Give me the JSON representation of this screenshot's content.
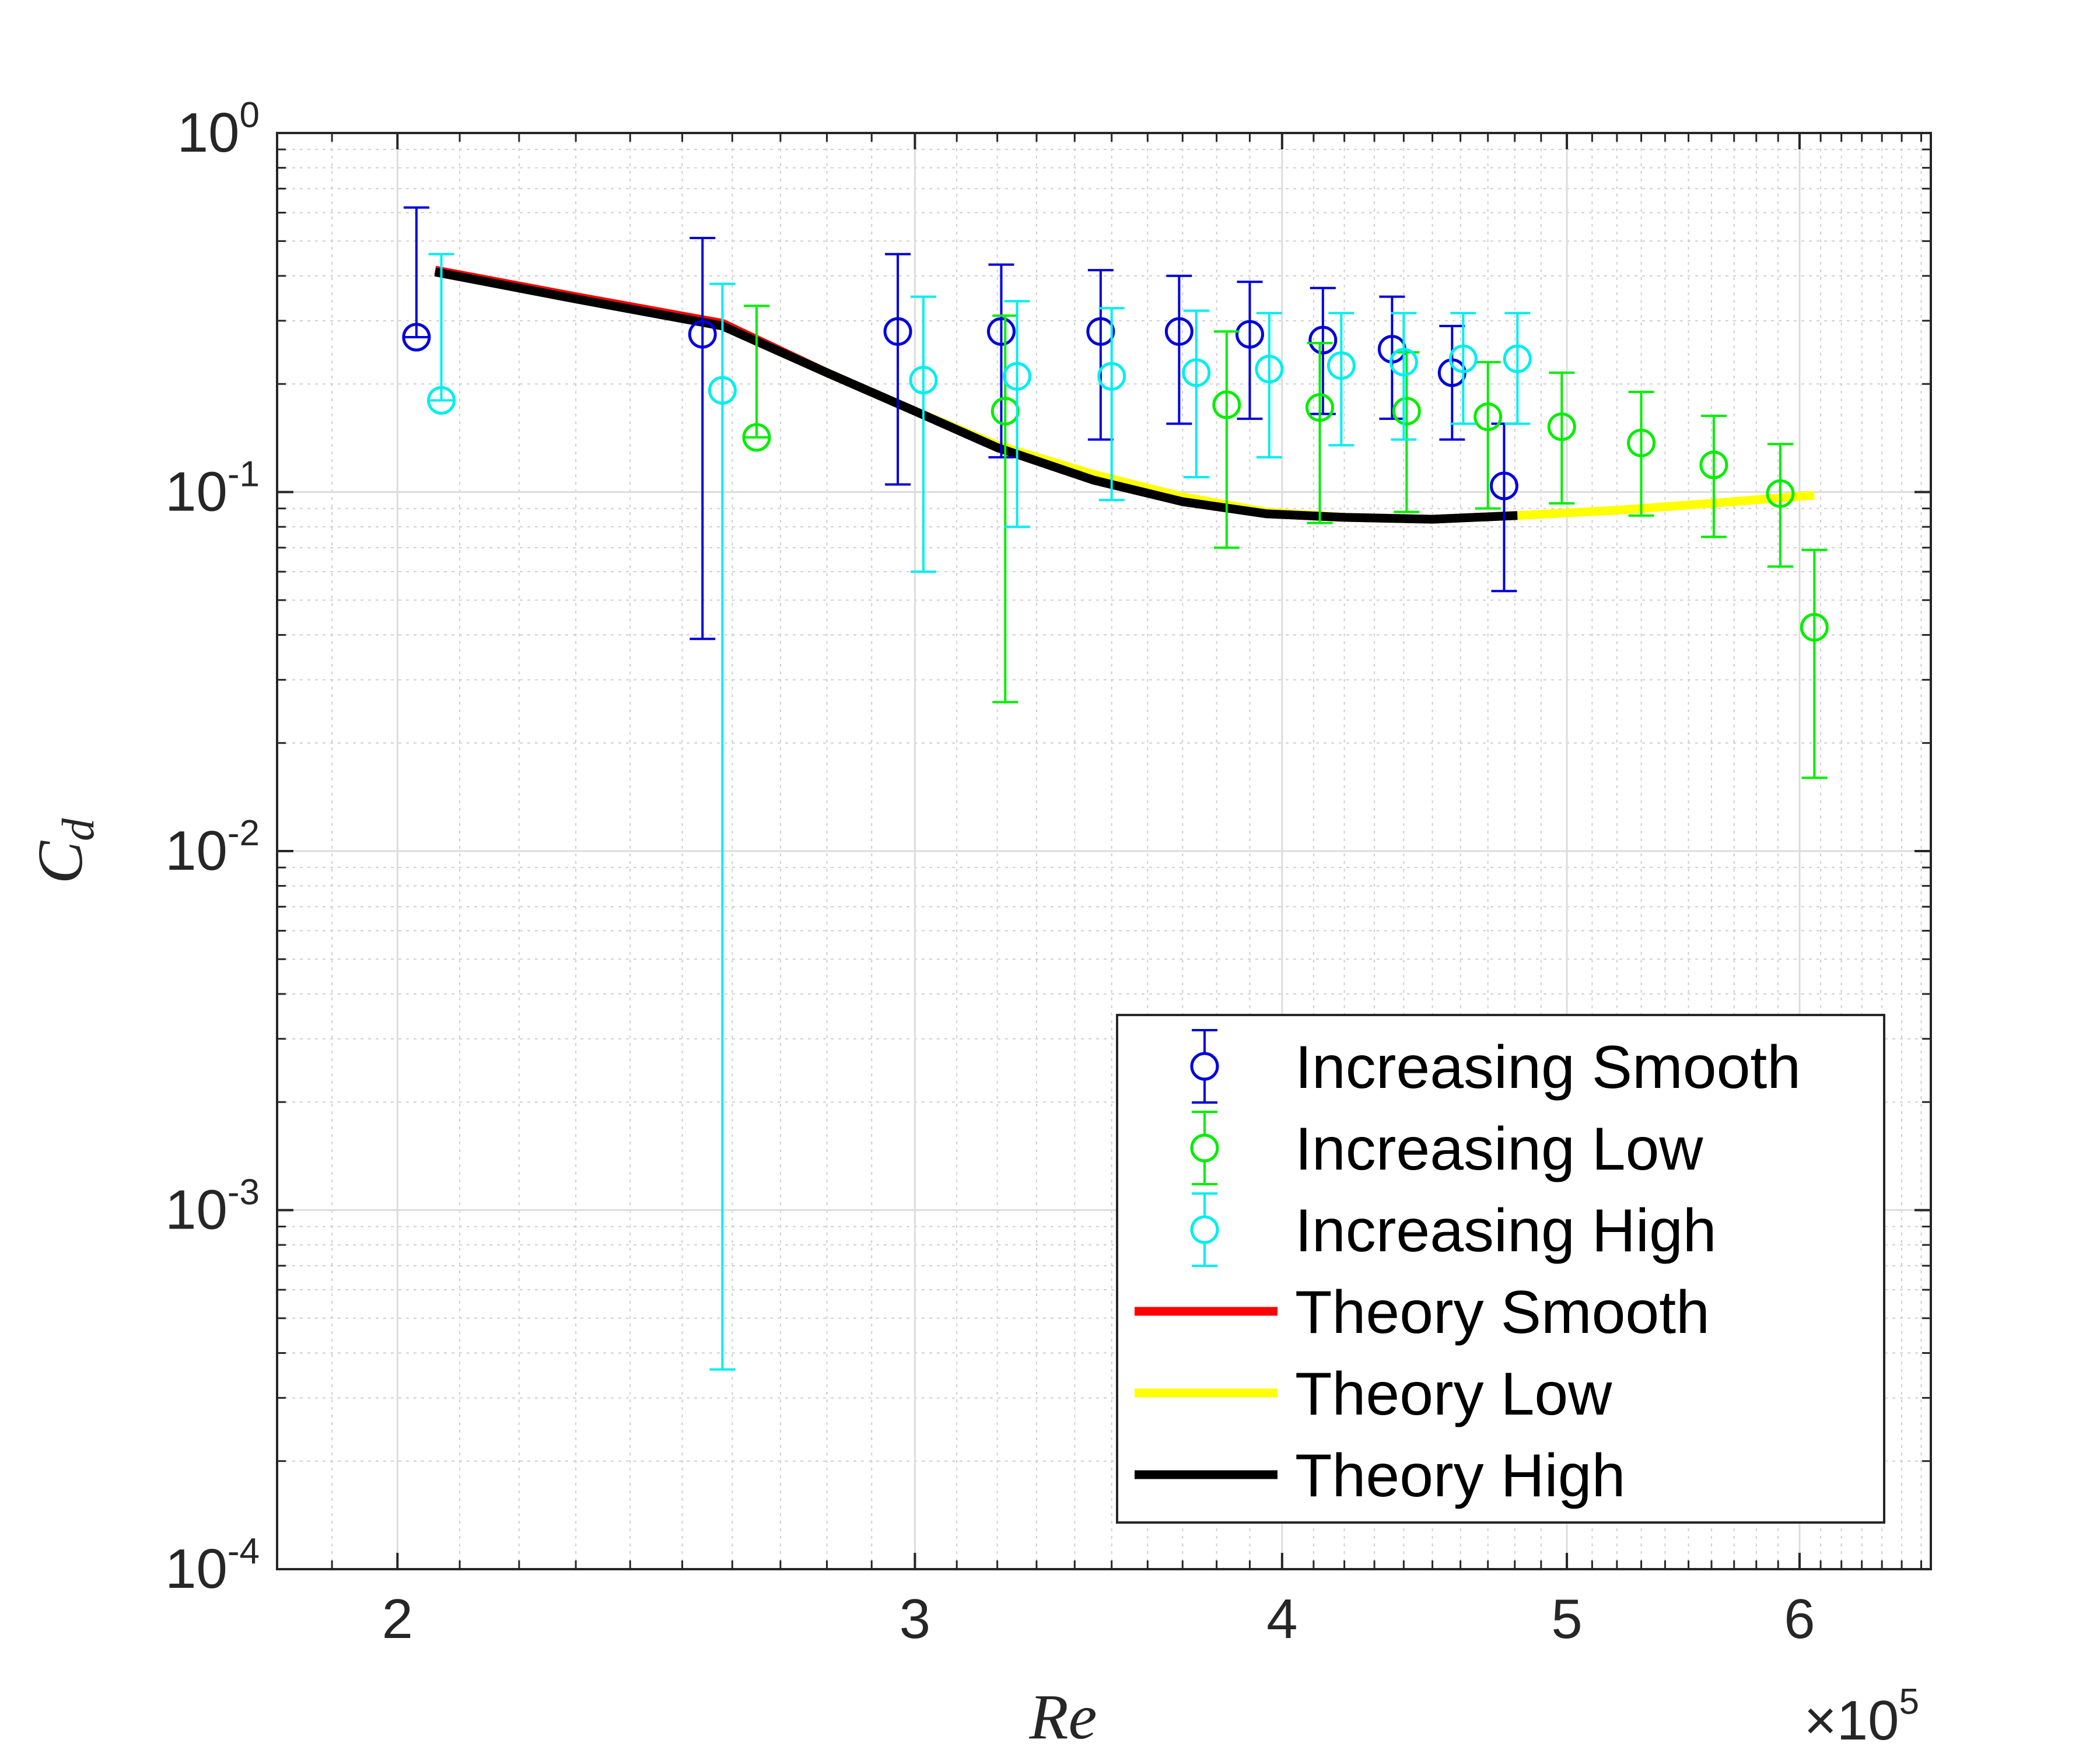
{
  "chart_data": {
    "type": "scatter",
    "title": "",
    "xlabel": "Re",
    "ylabel": "C_d",
    "xscale": "log",
    "yscale": "log",
    "xlim": [
      182000,
      665000
    ],
    "ylim": [
      0.0001,
      1
    ],
    "x_multiplier_label": "×10",
    "x_multiplier_exponent": "5",
    "x_ticks": [
      {
        "value": 200000,
        "label": "2"
      },
      {
        "value": 300000,
        "label": "3"
      },
      {
        "value": 400000,
        "label": "4"
      },
      {
        "value": 500000,
        "label": "5"
      },
      {
        "value": 600000,
        "label": "6"
      }
    ],
    "y_ticks": [
      {
        "value": 1,
        "base": "10",
        "exp": "0"
      },
      {
        "value": 0.1,
        "base": "10",
        "exp": "-1"
      },
      {
        "value": 0.01,
        "base": "10",
        "exp": "-2"
      },
      {
        "value": 0.001,
        "base": "10",
        "exp": "-3"
      },
      {
        "value": 0.0001,
        "base": "10",
        "exp": "-4"
      }
    ],
    "grid": true,
    "minor_grid": true,
    "legend_position": "bottom-right",
    "series": [
      {
        "name": "Increasing Smooth",
        "kind": "errorbar",
        "color": "#0000dd",
        "points": [
          {
            "x": 203000,
            "y": 0.27,
            "low": 0.27,
            "high": 0.62
          },
          {
            "x": 254000,
            "y": 0.275,
            "low": 0.039,
            "high": 0.51
          },
          {
            "x": 296000,
            "y": 0.28,
            "low": 0.105,
            "high": 0.46
          },
          {
            "x": 321000,
            "y": 0.28,
            "low": 0.125,
            "high": 0.43
          },
          {
            "x": 347000,
            "y": 0.28,
            "low": 0.14,
            "high": 0.415
          },
          {
            "x": 369000,
            "y": 0.28,
            "low": 0.155,
            "high": 0.4
          },
          {
            "x": 390000,
            "y": 0.275,
            "low": 0.16,
            "high": 0.385
          },
          {
            "x": 413000,
            "y": 0.265,
            "low": 0.165,
            "high": 0.37
          },
          {
            "x": 436000,
            "y": 0.25,
            "low": 0.16,
            "high": 0.35
          },
          {
            "x": 457000,
            "y": 0.215,
            "low": 0.14,
            "high": 0.29
          },
          {
            "x": 476000,
            "y": 0.104,
            "low": 0.053,
            "high": 0.155
          }
        ]
      },
      {
        "name": "Increasing Low",
        "kind": "errorbar",
        "color": "#00ee00",
        "points": [
          {
            "x": 265000,
            "y": 0.142,
            "low": 0.142,
            "high": 0.33
          },
          {
            "x": 322000,
            "y": 0.168,
            "low": 0.026,
            "high": 0.31
          },
          {
            "x": 383000,
            "y": 0.175,
            "low": 0.07,
            "high": 0.28
          },
          {
            "x": 412000,
            "y": 0.172,
            "low": 0.082,
            "high": 0.26
          },
          {
            "x": 441000,
            "y": 0.168,
            "low": 0.088,
            "high": 0.245
          },
          {
            "x": 470000,
            "y": 0.162,
            "low": 0.09,
            "high": 0.23
          },
          {
            "x": 498000,
            "y": 0.152,
            "low": 0.093,
            "high": 0.215
          },
          {
            "x": 530000,
            "y": 0.137,
            "low": 0.086,
            "high": 0.19
          },
          {
            "x": 561000,
            "y": 0.119,
            "low": 0.075,
            "high": 0.163
          },
          {
            "x": 591000,
            "y": 0.099,
            "low": 0.062,
            "high": 0.136
          },
          {
            "x": 607000,
            "y": 0.042,
            "low": 0.016,
            "high": 0.069
          }
        ]
      },
      {
        "name": "Increasing High",
        "kind": "errorbar",
        "color": "#00eeee",
        "points": [
          {
            "x": 207000,
            "y": 0.18,
            "low": 0.18,
            "high": 0.46
          },
          {
            "x": 258000,
            "y": 0.192,
            "low": 0.00036,
            "high": 0.38
          },
          {
            "x": 302000,
            "y": 0.205,
            "low": 0.06,
            "high": 0.35
          },
          {
            "x": 325000,
            "y": 0.21,
            "low": 0.08,
            "high": 0.34
          },
          {
            "x": 350000,
            "y": 0.21,
            "low": 0.095,
            "high": 0.325
          },
          {
            "x": 374000,
            "y": 0.215,
            "low": 0.11,
            "high": 0.32
          },
          {
            "x": 396000,
            "y": 0.22,
            "low": 0.125,
            "high": 0.315
          },
          {
            "x": 419000,
            "y": 0.225,
            "low": 0.135,
            "high": 0.315
          },
          {
            "x": 440000,
            "y": 0.23,
            "low": 0.14,
            "high": 0.315
          },
          {
            "x": 461000,
            "y": 0.235,
            "low": 0.155,
            "high": 0.315
          },
          {
            "x": 481000,
            "y": 0.235,
            "low": 0.155,
            "high": 0.315
          }
        ]
      },
      {
        "name": "Theory Smooth",
        "kind": "line",
        "color": "#ff0000",
        "points": [
          {
            "x": 206000,
            "y": 0.415
          },
          {
            "x": 230000,
            "y": 0.35
          },
          {
            "x": 258000,
            "y": 0.295
          },
          {
            "x": 280000,
            "y": 0.215
          },
          {
            "x": 300000,
            "y": 0.168
          },
          {
            "x": 320000,
            "y": 0.133
          },
          {
            "x": 345000,
            "y": 0.108
          },
          {
            "x": 370000,
            "y": 0.094
          },
          {
            "x": 395000,
            "y": 0.087
          },
          {
            "x": 420000,
            "y": 0.085
          },
          {
            "x": 450000,
            "y": 0.084
          },
          {
            "x": 480000,
            "y": 0.086
          }
        ]
      },
      {
        "name": "Theory Low",
        "kind": "line",
        "color": "#ffff00",
        "points": [
          {
            "x": 258000,
            "y": 0.29
          },
          {
            "x": 280000,
            "y": 0.215
          },
          {
            "x": 300000,
            "y": 0.168
          },
          {
            "x": 320000,
            "y": 0.135
          },
          {
            "x": 345000,
            "y": 0.112
          },
          {
            "x": 370000,
            "y": 0.097
          },
          {
            "x": 395000,
            "y": 0.088
          },
          {
            "x": 420000,
            "y": 0.085
          },
          {
            "x": 450000,
            "y": 0.084
          },
          {
            "x": 481000,
            "y": 0.086
          },
          {
            "x": 520000,
            "y": 0.089
          },
          {
            "x": 560000,
            "y": 0.093
          },
          {
            "x": 607000,
            "y": 0.098
          }
        ]
      },
      {
        "name": "Theory High",
        "kind": "line",
        "color": "#000000",
        "points": [
          {
            "x": 206000,
            "y": 0.41
          },
          {
            "x": 230000,
            "y": 0.345
          },
          {
            "x": 258000,
            "y": 0.29
          },
          {
            "x": 280000,
            "y": 0.215
          },
          {
            "x": 300000,
            "y": 0.168
          },
          {
            "x": 320000,
            "y": 0.133
          },
          {
            "x": 345000,
            "y": 0.108
          },
          {
            "x": 370000,
            "y": 0.094
          },
          {
            "x": 395000,
            "y": 0.087
          },
          {
            "x": 420000,
            "y": 0.085
          },
          {
            "x": 450000,
            "y": 0.084
          },
          {
            "x": 481000,
            "y": 0.086
          }
        ]
      }
    ]
  }
}
